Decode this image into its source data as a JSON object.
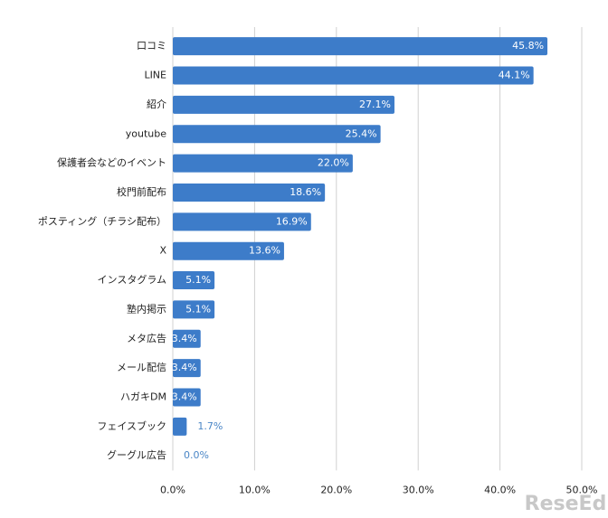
{
  "chart_data": {
    "type": "barh",
    "categories": [
      "口コミ",
      "LINE",
      "紹介",
      "youtube",
      "保護者会などのイベント",
      "校門前配布",
      "ポスティング（チラシ配布）",
      "X",
      "インスタグラム",
      "塾内掲示",
      "メタ広告",
      "メール配信",
      "ハガキDM",
      "フェイスブック",
      "グーグル広告"
    ],
    "values": [
      45.8,
      44.1,
      27.1,
      25.4,
      22.0,
      18.6,
      16.9,
      13.6,
      5.1,
      5.1,
      3.4,
      3.4,
      3.4,
      1.7,
      0.0
    ],
    "value_labels": [
      "45.8%",
      "44.1%",
      "27.1%",
      "25.4%",
      "22.0%",
      "18.6%",
      "16.9%",
      "13.6%",
      "5.1%",
      "5.1%",
      "3.4%",
      "3.4%",
      "3.4%",
      "1.7%",
      "0.0%"
    ],
    "color": "#3d7cc9",
    "xlim": [
      0,
      50
    ],
    "xticks": [
      {
        "value": 0,
        "label": "0.0%"
      },
      {
        "value": 10,
        "label": "10.0%"
      },
      {
        "value": 20,
        "label": "20.0%"
      },
      {
        "value": 30,
        "label": "30.0%"
      },
      {
        "value": 40,
        "label": "40.0%"
      },
      {
        "value": 50,
        "label": "50.0%"
      }
    ],
    "grid": true,
    "watermark": "ReseEd"
  }
}
